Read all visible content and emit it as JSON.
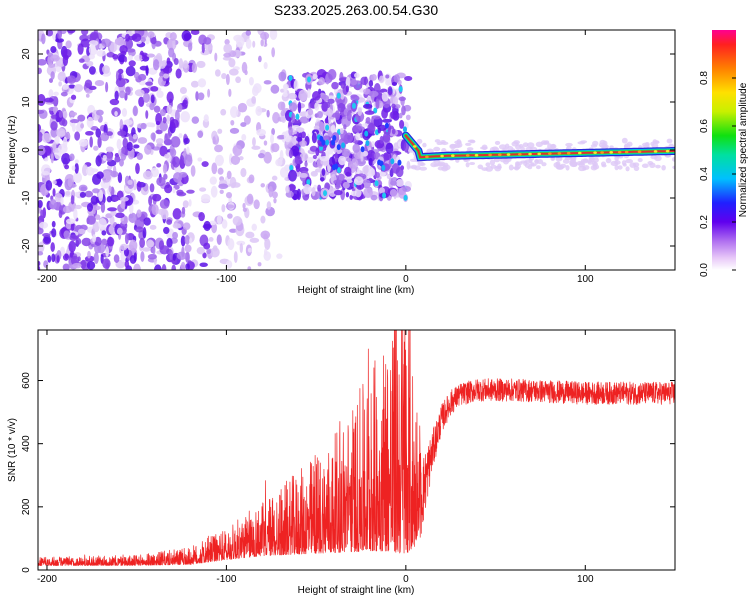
{
  "title": "S233.2025.263.00.54.G30",
  "chart_data": [
    {
      "type": "heatmap",
      "name": "spectrogram",
      "xlabel": "Height of straight line (km)",
      "ylabel": "Frequency (Hz)",
      "xlim": [
        -205,
        150
      ],
      "ylim": [
        -25,
        25
      ],
      "xticks": [
        -200,
        -100,
        0,
        100
      ],
      "yticks": [
        -20,
        -10,
        0,
        10,
        20
      ],
      "trace_description": "scattered noisy energy below 0 km; coherent line near 0 Hz above 0 km",
      "colorbar": {
        "label": "Normalized spectral amplitude",
        "range": [
          0,
          1
        ],
        "ticks": [
          0.0,
          0.2,
          0.4,
          0.6,
          0.8
        ],
        "tick_labels": [
          "0.0",
          "0.2",
          "0.4",
          "0.6",
          "0.8"
        ]
      }
    },
    {
      "type": "line",
      "name": "snr",
      "xlabel": "Height of straight line (km)",
      "ylabel": "SNR (10 * v/v)",
      "xlim": [
        -205,
        150
      ],
      "ylim": [
        0,
        760
      ],
      "xticks": [
        -200,
        -100,
        0,
        100
      ],
      "yticks": [
        0,
        200,
        400,
        600
      ],
      "color": "#ee2222",
      "envelope": {
        "x": [
          -205,
          -150,
          -120,
          -100,
          -80,
          -60,
          -40,
          -20,
          -10,
          0,
          5,
          10,
          15,
          20,
          25,
          30,
          40,
          60,
          80,
          100,
          120,
          150
        ],
        "mean": [
          20,
          22,
          30,
          55,
          85,
          110,
          140,
          190,
          230,
          260,
          200,
          260,
          380,
          480,
          530,
          555,
          570,
          570,
          565,
          560,
          560,
          560
        ],
        "amp": [
          12,
          15,
          25,
          45,
          80,
          120,
          170,
          260,
          340,
          420,
          250,
          120,
          70,
          50,
          45,
          40,
          40,
          40,
          40,
          40,
          40,
          40
        ]
      }
    }
  ]
}
